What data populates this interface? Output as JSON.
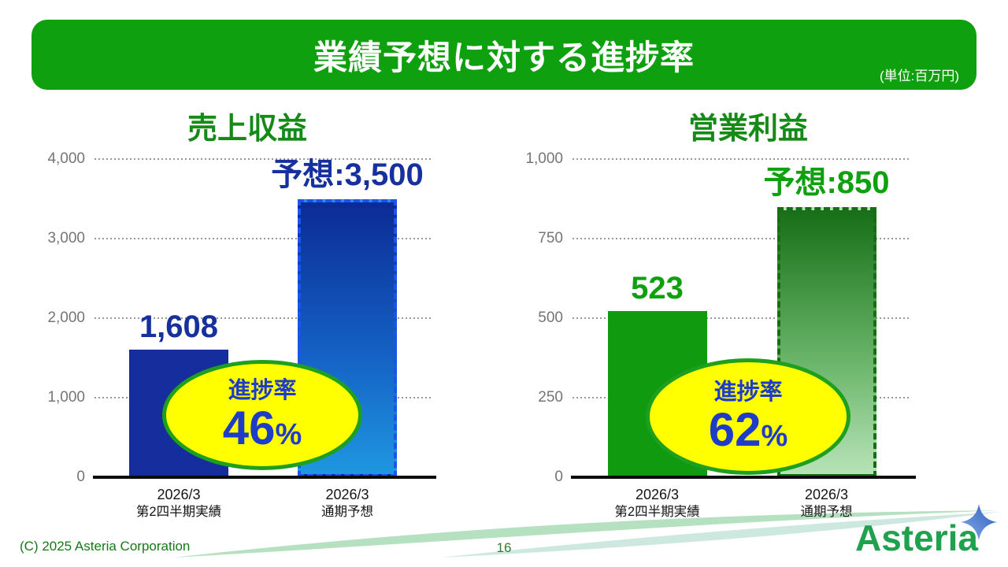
{
  "header": {
    "title": "業績予想に対する進捗率",
    "unit_note": "(単位:百万円)",
    "banner_color": "#0FA00F"
  },
  "chart_data": [
    {
      "type": "bar",
      "title": "売上収益",
      "categories": [
        [
          "2026/3",
          "第2四半期実績"
        ],
        [
          "2026/3",
          "通期予想"
        ]
      ],
      "values": [
        1608,
        3500
      ],
      "value_labels": [
        "1,608",
        "予想:3,500"
      ],
      "bar_styles": [
        "solid",
        "dashed-gradient"
      ],
      "ylim": [
        0,
        4000
      ],
      "yticks": [
        0,
        1000,
        2000,
        3000,
        4000
      ],
      "ytick_labels": [
        "0",
        "1,000",
        "2,000",
        "3,000",
        "4,000"
      ],
      "grid": true,
      "legend": "none",
      "progress": {
        "label": "進捗率",
        "value": "46",
        "unit": "%"
      },
      "colors": {
        "solid_bar": "#162D9E",
        "dash_border": "#1E52F0",
        "gradient_top": "#0B2B94",
        "gradient_mid": "#1460C4",
        "gradient_bottom": "#1F97E0",
        "value_label": "#16309E"
      }
    },
    {
      "type": "bar",
      "title": "営業利益",
      "categories": [
        [
          "2026/3",
          "第2四半期実績"
        ],
        [
          "2026/3",
          "通期予想"
        ]
      ],
      "values": [
        523,
        850
      ],
      "value_labels": [
        "523",
        "予想:850"
      ],
      "bar_styles": [
        "solid",
        "dashed-gradient"
      ],
      "ylim": [
        0,
        1000
      ],
      "yticks": [
        0,
        250,
        500,
        750,
        1000
      ],
      "ytick_labels": [
        "0",
        "250",
        "500",
        "750",
        "1,000"
      ],
      "grid": true,
      "legend": "none",
      "progress": {
        "label": "進捗率",
        "value": "62",
        "unit": "%"
      },
      "colors": {
        "solid_bar": "#0F9A0F",
        "dash_border": "#156E15",
        "gradient_top": "#176F17",
        "gradient_mid": "#66B266",
        "gradient_bottom": "#B7E3B7",
        "value_label": "#0FA00F"
      }
    }
  ],
  "badge_style": {
    "fill": "#FFFF00",
    "border": "#1EA01E",
    "text": "#1E3CC8"
  },
  "footer": {
    "copyright": "(C) 2025 Asteria Corporation",
    "page_number": "16"
  },
  "logo": {
    "wordmark": "Asteria",
    "wordmark_color": "#1FA14E",
    "sparkle_color": "#2E5EC2"
  }
}
